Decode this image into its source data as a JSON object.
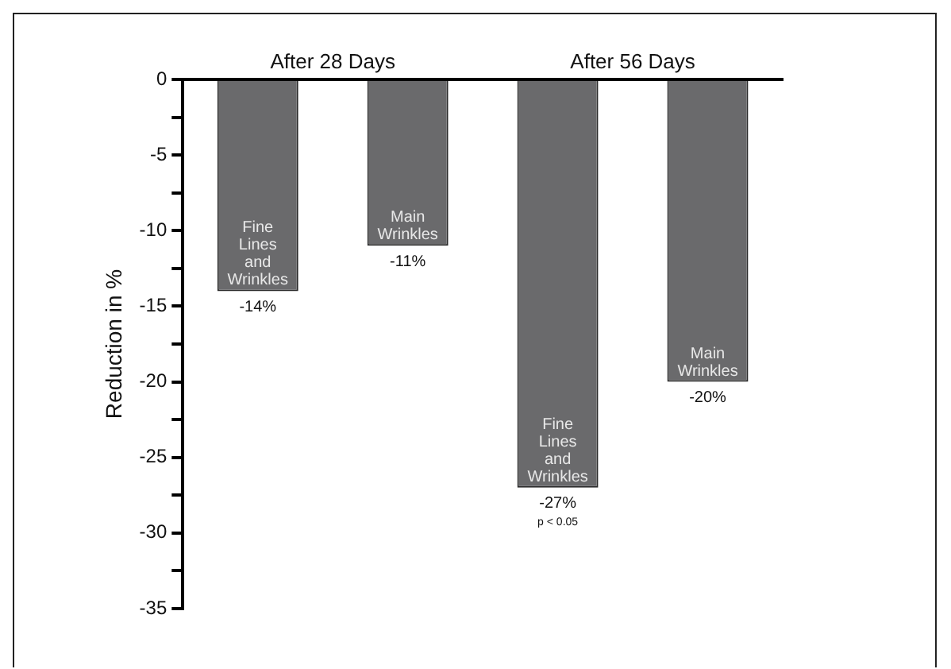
{
  "chart_data": {
    "type": "bar",
    "ylabel": "Reduction in %",
    "categories": [
      "Fine Lines and Wrinkles",
      "Main Wrinkles",
      "Fine Lines and Wrinkles",
      "Main Wrinkles"
    ],
    "values": [
      -14,
      -11,
      -27,
      -20
    ],
    "color": "#6a6a6c",
    "value_labels": [
      "-14%",
      "-11%",
      "-27%",
      "-20%"
    ],
    "annotations": [
      "After 28 Days",
      "After 56 Days",
      "p < 0.05"
    ],
    "ylim": [
      -35,
      0
    ],
    "yticks": [
      0,
      {
        "value": -2.5,
        "label": null
      },
      -5,
      {
        "value": -7.5,
        "label": null
      },
      -10,
      {
        "value": -12.5,
        "label": null
      },
      -15,
      {
        "value": -17.5,
        "label": null
      },
      -20,
      {
        "value": -22.5,
        "label": null
      },
      -25,
      {
        "value": -27.5,
        "label": null
      },
      -30,
      {
        "value": -32.5,
        "label": null
      },
      -35
    ],
    "grid": false,
    "legend": false
  }
}
